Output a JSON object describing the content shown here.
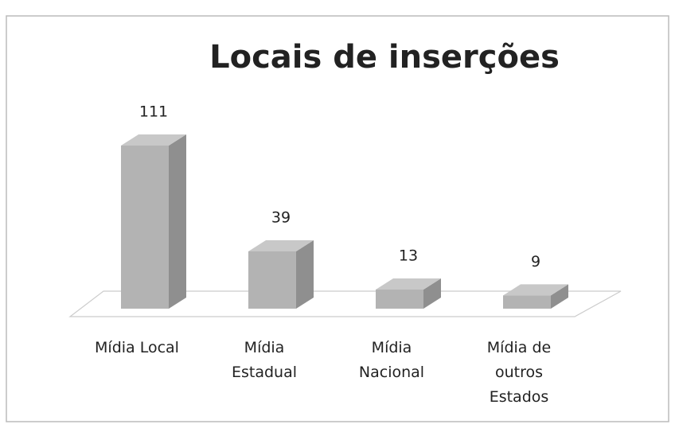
{
  "chart_data": {
    "type": "bar3d",
    "title": "Locais de inserções",
    "categories": [
      "Mídia Local",
      "Mídia Estadual",
      "Mídia Nacional",
      "Mídia de outros Estados"
    ],
    "values": [
      111,
      39,
      13,
      9
    ],
    "color": "#b3b3b3"
  }
}
